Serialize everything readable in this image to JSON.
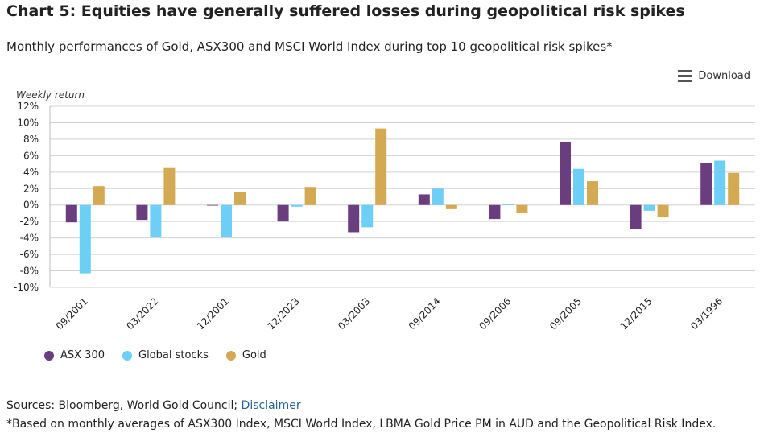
{
  "title": "Chart 5: Equities have generally suffered losses during geopolitical risk spikes",
  "subtitle": "Monthly performances of Gold, ASX300 and MSCI World Index during top 10 geopolitical risk spikes*",
  "download_label": "Download",
  "colors": {
    "asx": "#6a3d7f",
    "global": "#6dcff6",
    "gold": "#d4a953",
    "grid": "#d0d0d0",
    "link": "#2a6496"
  },
  "chart_data": {
    "type": "bar",
    "ylabel": "Weekly return",
    "ylim": [
      -10,
      12
    ],
    "ytick_step": 2,
    "ytick_labels": [
      "12%",
      "10%",
      "8%",
      "6%",
      "4%",
      "2%",
      "0%",
      "-2%",
      "-4%",
      "-6%",
      "-8%",
      "-10%"
    ],
    "categories": [
      "09/2001",
      "03/2022",
      "12/2001",
      "12/2023",
      "03/2003",
      "09/2014",
      "09/2006",
      "09/2005",
      "12/2015",
      "03/1996"
    ],
    "series": [
      {
        "name": "ASX 300",
        "values": [
          -2.1,
          -1.8,
          0,
          -2.0,
          -3.3,
          1.3,
          -1.7,
          7.7,
          -2.9,
          5.1
        ]
      },
      {
        "name": "Global stocks",
        "values": [
          -8.3,
          -3.9,
          -3.9,
          -0.2,
          -2.7,
          2.0,
          0.1,
          4.4,
          -0.7,
          5.4
        ]
      },
      {
        "name": "Gold",
        "values": [
          2.3,
          4.5,
          1.6,
          2.2,
          9.3,
          -0.5,
          -1.0,
          2.9,
          -1.5,
          3.9
        ]
      }
    ],
    "legend_position": "bottom-left"
  },
  "sources": {
    "prefix": "Sources: Bloomberg, World Gold Council; ",
    "link_text": "Disclaimer"
  },
  "footnote": "*Based on monthly averages of ASX300 Index, MSCI World Index, LBMA Gold Price PM in AUD and the Geopolitical Risk Index."
}
